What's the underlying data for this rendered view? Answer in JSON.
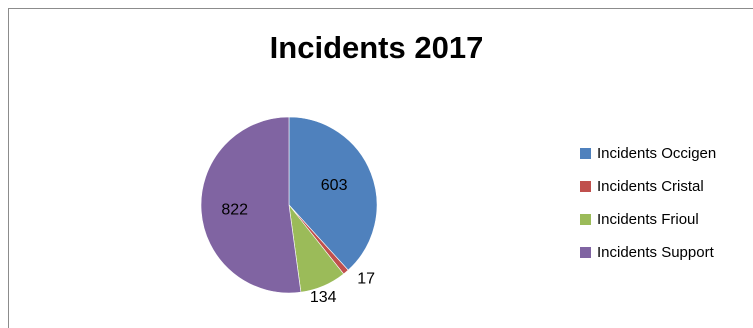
{
  "chart_data": {
    "type": "pie",
    "title": "Incidents 2017",
    "categories": [
      "Incidents Occigen",
      "Incidents Cristal",
      "Incidents Frioul",
      "Incidents Support"
    ],
    "values": [
      603,
      17,
      134,
      822
    ],
    "data_labels": [
      "603",
      "17",
      "134",
      "822"
    ],
    "colors": [
      "#4f81bd",
      "#c0504d",
      "#9bbb59",
      "#8064a2"
    ],
    "legend_placement": "right"
  }
}
